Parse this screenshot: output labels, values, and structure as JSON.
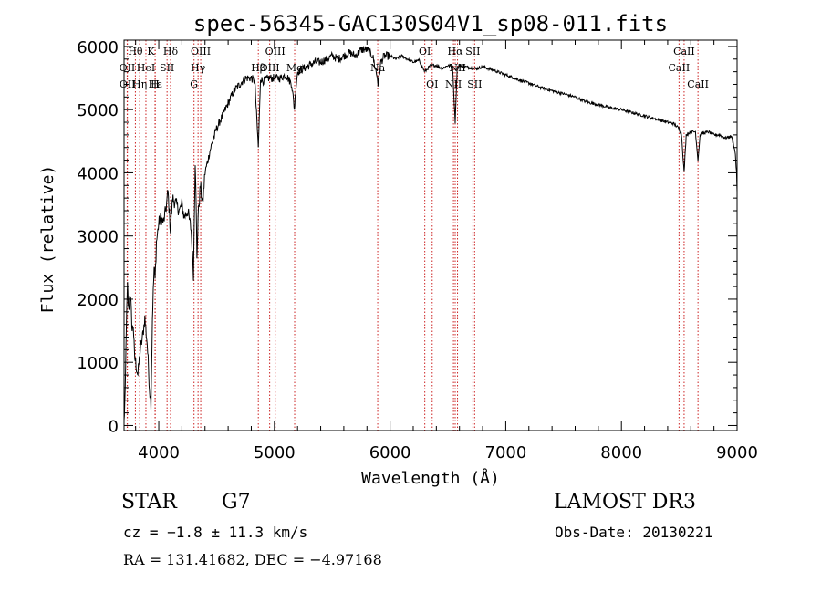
{
  "chart_data": {
    "type": "line",
    "title": "spec-56345-GAC130S04V1_sp08-011.fits",
    "xlabel": "Wavelength (Å)",
    "ylabel": "Flux (relative)",
    "xlim": [
      3700,
      9000
    ],
    "ylim": [
      -80,
      6100
    ],
    "xticks": [
      4000,
      5000,
      6000,
      7000,
      8000,
      9000
    ],
    "xtick_labels": [
      "4000",
      "5000",
      "6000",
      "7000",
      "8000",
      "9000"
    ],
    "yticks": [
      0,
      1000,
      2000,
      3000,
      4000,
      5000,
      6000
    ],
    "ytick_labels": [
      "0",
      "1000",
      "2000",
      "3000",
      "4000",
      "5000",
      "6000"
    ],
    "grid": false,
    "series": [
      {
        "name": "flux",
        "x": [
          3700,
          3710,
          3720,
          3730,
          3740,
          3750,
          3760,
          3770,
          3780,
          3790,
          3800,
          3820,
          3840,
          3860,
          3880,
          3900,
          3920,
          3933,
          3945,
          3960,
          3968,
          3980,
          4000,
          4020,
          4040,
          4060,
          4080,
          4101,
          4120,
          4150,
          4180,
          4200,
          4220,
          4250,
          4280,
          4300,
          4315,
          4320,
          4330,
          4340,
          4360,
          4380,
          4400,
          4450,
          4500,
          4550,
          4600,
          4650,
          4700,
          4750,
          4800,
          4830,
          4861,
          4880,
          4900,
          4950,
          5000,
          5050,
          5100,
          5150,
          5173,
          5183,
          5200,
          5250,
          5300,
          5350,
          5400,
          5450,
          5500,
          5550,
          5600,
          5650,
          5700,
          5750,
          5800,
          5850,
          5890,
          5896,
          5920,
          5950,
          6000,
          6050,
          6100,
          6150,
          6200,
          6250,
          6300,
          6350,
          6400,
          6450,
          6500,
          6540,
          6563,
          6580,
          6600,
          6650,
          6700,
          6750,
          6800,
          6900,
          7000,
          7100,
          7200,
          7300,
          7400,
          7500,
          7600,
          7700,
          7800,
          7900,
          8000,
          8100,
          8200,
          8300,
          8400,
          8450,
          8498,
          8520,
          8542,
          8560,
          8600,
          8640,
          8662,
          8680,
          8700,
          8750,
          8800,
          8850,
          8900,
          8950,
          8970,
          8985,
          8995,
          9000
        ],
        "y": [
          50,
          500,
          1600,
          2200,
          1800,
          2100,
          1900,
          1500,
          1600,
          1100,
          1000,
          800,
          1200,
          1400,
          1700,
          1300,
          600,
          350,
          1700,
          2500,
          2300,
          2900,
          3200,
          3300,
          3200,
          3400,
          3700,
          3100,
          3600,
          3500,
          3400,
          3500,
          3300,
          3400,
          3100,
          2400,
          4200,
          3900,
          2600,
          3300,
          3800,
          3500,
          4000,
          4400,
          4700,
          4900,
          5100,
          5300,
          5400,
          5500,
          5500,
          5450,
          4400,
          5500,
          5450,
          5500,
          5500,
          5500,
          5550,
          5400,
          5000,
          5300,
          5600,
          5650,
          5700,
          5750,
          5750,
          5800,
          5850,
          5800,
          5850,
          5900,
          5850,
          5950,
          5950,
          5850,
          5500,
          5400,
          5750,
          5850,
          5850,
          5800,
          5850,
          5800,
          5750,
          5780,
          5600,
          5700,
          5700,
          5650,
          5700,
          5680,
          4800,
          5650,
          5700,
          5680,
          5660,
          5650,
          5680,
          5620,
          5550,
          5480,
          5420,
          5350,
          5300,
          5250,
          5200,
          5120,
          5080,
          5030,
          5000,
          4950,
          4900,
          4850,
          4800,
          4780,
          4700,
          4600,
          4000,
          4600,
          4650,
          4650,
          4200,
          4600,
          4620,
          4650,
          4600,
          4600,
          4550,
          4580,
          4450,
          4300,
          4000,
          3700
        ]
      }
    ],
    "lines": [
      {
        "name": "Hθ",
        "x": 3798,
        "row": 0,
        "side": "left"
      },
      {
        "name": "OII",
        "x": 3727,
        "row": 1,
        "side": "left"
      },
      {
        "name": "OII",
        "x": 3729,
        "row": 2,
        "side": "left"
      },
      {
        "name": "Hη",
        "x": 3835,
        "row": 2,
        "side": "left"
      },
      {
        "name": "Hε",
        "x": 3970,
        "row": 2,
        "side": "left"
      },
      {
        "name": "HeI",
        "x": 3889,
        "row": 1,
        "side": "left"
      },
      {
        "name": "K",
        "x": 3933,
        "row": 0,
        "side": "left"
      },
      {
        "name": "H",
        "x": 3968,
        "row": 2,
        "side": "left"
      },
      {
        "name": "SII",
        "x": 4072,
        "row": 1,
        "side": "left"
      },
      {
        "name": "Hδ",
        "x": 4102,
        "row": 0,
        "side": "left"
      },
      {
        "name": "G",
        "x": 4305,
        "row": 2,
        "side": "left"
      },
      {
        "name": "Hγ",
        "x": 4340,
        "row": 1,
        "side": "left"
      },
      {
        "name": "OIII",
        "x": 4363,
        "row": 0,
        "side": "left"
      },
      {
        "name": "Hβ",
        "x": 4861,
        "row": 1,
        "side": "left"
      },
      {
        "name": "OIII",
        "x": 4959,
        "row": 1,
        "side": "left"
      },
      {
        "name": "OIII",
        "x": 5007,
        "row": 0,
        "side": "left"
      },
      {
        "name": "Mg",
        "x": 5175,
        "row": 1,
        "side": "left"
      },
      {
        "name": "Na",
        "x": 5893,
        "row": 1,
        "side": "left"
      },
      {
        "name": "OI",
        "x": 6300,
        "row": 0,
        "side": "left"
      },
      {
        "name": "OI",
        "x": 6364,
        "row": 2,
        "side": "left"
      },
      {
        "name": "NII",
        "x": 6548,
        "row": 2,
        "side": "left"
      },
      {
        "name": "Hα",
        "x": 6563,
        "row": 0,
        "side": "left"
      },
      {
        "name": "NII",
        "x": 6583,
        "row": 1,
        "side": "left"
      },
      {
        "name": "SII",
        "x": 6716,
        "row": 0,
        "side": "left"
      },
      {
        "name": "SII",
        "x": 6731,
        "row": 2,
        "side": "left"
      },
      {
        "name": "CaII",
        "x": 8498,
        "row": 1,
        "side": "left"
      },
      {
        "name": "CaII",
        "x": 8542,
        "row": 0,
        "side": "left"
      },
      {
        "name": "CaII",
        "x": 8662,
        "row": 2,
        "side": "left"
      }
    ]
  },
  "footer": {
    "object_class": "STAR",
    "subclass": "G7",
    "survey": "LAMOST DR3",
    "cz": "cz = −1.8 ± 11.3 km/s",
    "obs_date": "Obs-Date: 20130221",
    "radec": "RA = 131.41682, DEC =  −4.97168"
  },
  "colors": {
    "line_marker": "#cc2222",
    "spectrum": "#000000",
    "axis": "#000000"
  }
}
